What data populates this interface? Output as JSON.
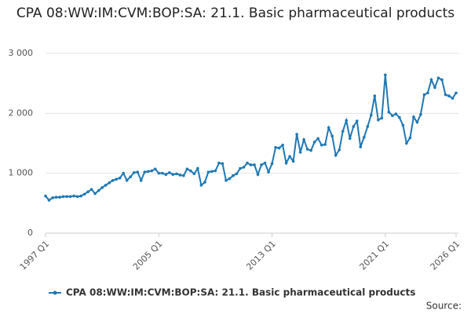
{
  "chart_data": {
    "type": "line",
    "title": "CPA 08:WW:IM:CVM:BOP:SA: 21.1. Basic pharmaceutical products",
    "categories": [
      "1997 Q1",
      null,
      null,
      null,
      null,
      null,
      null,
      null,
      null,
      null,
      null,
      null,
      null,
      null,
      null,
      null,
      null,
      null,
      null,
      null,
      null,
      null,
      null,
      null,
      null,
      null,
      null,
      null,
      null,
      null,
      null,
      null,
      "2005 Q1",
      null,
      null,
      null,
      null,
      null,
      null,
      null,
      null,
      null,
      null,
      null,
      null,
      null,
      null,
      null,
      null,
      null,
      null,
      null,
      null,
      null,
      null,
      null,
      null,
      null,
      null,
      null,
      null,
      null,
      null,
      null,
      "2013 Q1",
      null,
      null,
      null,
      null,
      null,
      null,
      null,
      null,
      null,
      null,
      null,
      null,
      null,
      null,
      null,
      null,
      null,
      null,
      null,
      null,
      null,
      null,
      null,
      null,
      null,
      null,
      null,
      null,
      null,
      null,
      null,
      "2021 Q1",
      null,
      null,
      null,
      null,
      null,
      null,
      null,
      null,
      null,
      null,
      null,
      null,
      null,
      null,
      null,
      null,
      null,
      null,
      null,
      "2026 Q1"
    ],
    "series": [
      {
        "name": "CPA 08:WW:IM:CVM:BOP:SA: 21.1. Basic pharmaceutical products",
        "color": "#1f78b4",
        "values": [
          620,
          550,
          590,
          600,
          600,
          610,
          610,
          610,
          620,
          610,
          620,
          650,
          690,
          730,
          660,
          710,
          760,
          800,
          840,
          880,
          900,
          920,
          1000,
          880,
          940,
          1010,
          1020,
          880,
          1020,
          1030,
          1040,
          1070,
          1000,
          1000,
          980,
          1010,
          980,
          990,
          970,
          960,
          1070,
          1040,
          990,
          1080,
          800,
          850,
          1020,
          1030,
          1040,
          1170,
          1160,
          880,
          910,
          960,
          990,
          1080,
          1100,
          1170,
          1140,
          1140,
          980,
          1140,
          1170,
          1020,
          1160,
          1430,
          1420,
          1470,
          1170,
          1280,
          1200,
          1650,
          1350,
          1560,
          1400,
          1380,
          1520,
          1580,
          1470,
          1480,
          1760,
          1620,
          1300,
          1390,
          1700,
          1880,
          1580,
          1780,
          1870,
          1440,
          1600,
          1780,
          1970,
          2290,
          1890,
          1920,
          2640,
          2020,
          1960,
          1990,
          1930,
          1800,
          1500,
          1590,
          1940,
          1850,
          1980,
          2310,
          2340,
          2560,
          2430,
          2590,
          2560,
          2310,
          2290,
          2250,
          2340
        ]
      }
    ],
    "ylim": [
      0,
      3000
    ],
    "yticks": [
      0,
      {
        "value": 1000,
        "label": "1 000"
      },
      {
        "value": 2000,
        "label": "2 000"
      },
      {
        "value": 3000,
        "label": "3 000"
      }
    ],
    "grid": true,
    "legend": "bottom",
    "source": "Source:"
  }
}
